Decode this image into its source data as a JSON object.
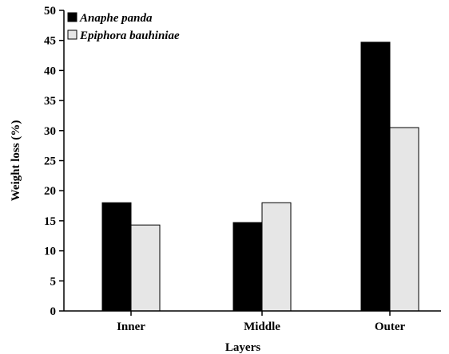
{
  "chart_data": {
    "type": "bar",
    "title": "",
    "xlabel": "Layers",
    "ylabel": "Weight loss (%)",
    "ylim": [
      0,
      50
    ],
    "yticks": [
      0,
      5,
      10,
      15,
      20,
      25,
      30,
      35,
      40,
      45,
      50
    ],
    "categories": [
      "Inner",
      "Middle",
      "Outer"
    ],
    "series": [
      {
        "name": "Anaphe panda",
        "values": [
          18,
          14.7,
          44.7
        ],
        "color": "#000000"
      },
      {
        "name": "Epiphora bauhiniae",
        "values": [
          14.3,
          18,
          30.5
        ],
        "color": "#e6e6e6"
      }
    ],
    "grid": false,
    "legend_position": "top-left"
  }
}
